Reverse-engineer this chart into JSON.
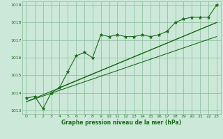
{
  "x": [
    0,
    1,
    2,
    3,
    4,
    5,
    6,
    7,
    8,
    9,
    10,
    11,
    12,
    13,
    14,
    15,
    16,
    17,
    18,
    19,
    20,
    21,
    22,
    23
  ],
  "y": [
    1013.7,
    1013.8,
    1013.1,
    1014.0,
    1014.3,
    1015.2,
    1016.1,
    1016.3,
    1016.0,
    1017.3,
    1017.2,
    1017.3,
    1017.2,
    1017.2,
    1017.3,
    1017.2,
    1017.3,
    1017.5,
    1018.0,
    1018.2,
    1018.3,
    1018.3,
    1018.3,
    1019.0
  ],
  "trend1_x": [
    0,
    23
  ],
  "trend1_y": [
    1013.5,
    1018.0
  ],
  "trend2_x": [
    0,
    23
  ],
  "trend2_y": [
    1013.5,
    1017.2
  ],
  "trend3_x": [
    4,
    23
  ],
  "trend3_y": [
    1014.3,
    1018.0
  ],
  "ylim": [
    1012.8,
    1019.2
  ],
  "xlim": [
    -0.5,
    23.5
  ],
  "yticks": [
    1013,
    1014,
    1015,
    1016,
    1017,
    1018,
    1019
  ],
  "xticks": [
    0,
    1,
    2,
    3,
    4,
    5,
    6,
    7,
    8,
    9,
    10,
    11,
    12,
    13,
    14,
    15,
    16,
    17,
    18,
    19,
    20,
    21,
    22,
    23
  ],
  "xlabel": "Graphe pression niveau de la mer (hPa)",
  "line_color": "#1a6b1a",
  "trend_color": "#1a6b1a",
  "bg_color": "#cce8d8",
  "grid_color": "#88bb99",
  "text_color": "#1a6b1a",
  "marker": "*",
  "markersize": 3.5,
  "linewidth": 0.8,
  "trend_linewidth": 0.8
}
